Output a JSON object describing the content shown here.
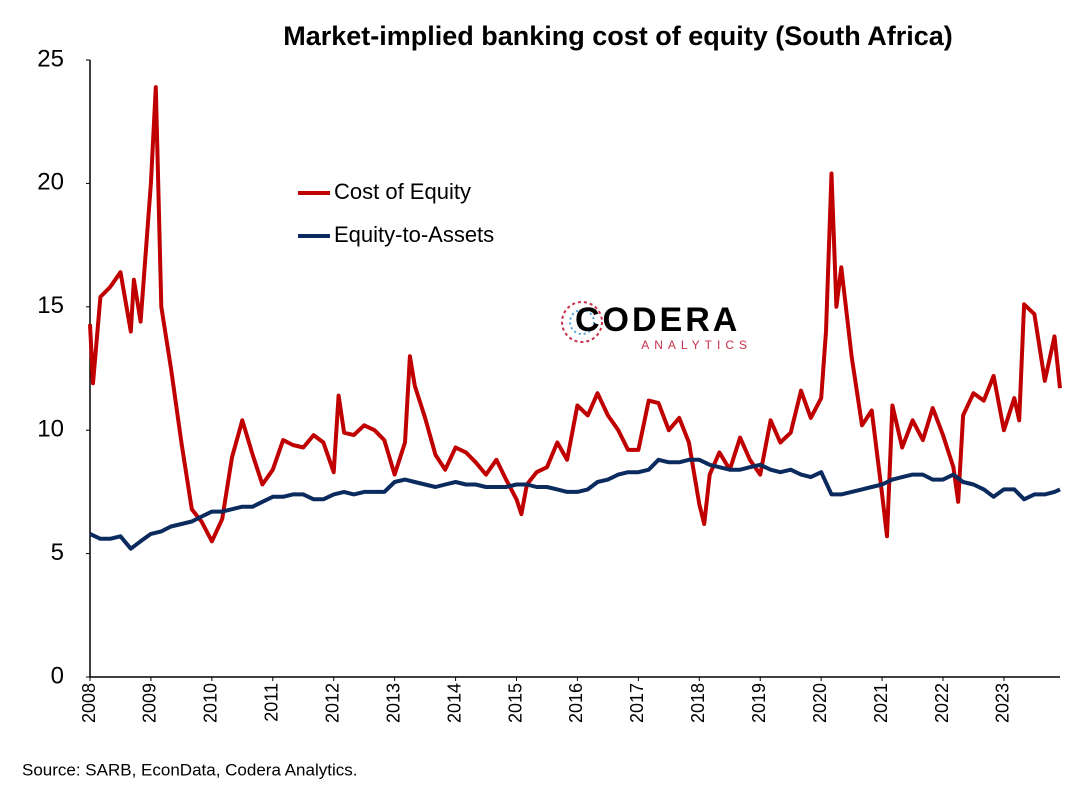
{
  "chart_data": {
    "type": "line",
    "title": "Market-implied banking cost of equity (South Africa)",
    "source": "Source: SARB, EconData, Codera Analytics.",
    "logo": {
      "name": "CODERA",
      "sub": "ANALYTICS"
    },
    "legend": "upper left",
    "xlim": [
      2008,
      2023.92
    ],
    "xticks": [
      2008,
      2009,
      2010,
      2011,
      2012,
      2013,
      2014,
      2015,
      2016,
      2017,
      2018,
      2019,
      2020,
      2021,
      2022,
      2023
    ],
    "ylim": [
      0,
      25
    ],
    "yticks": [
      0,
      5,
      10,
      15,
      20,
      25
    ],
    "grid": false,
    "series": [
      {
        "name": "Cost of Equity",
        "color": "#c00000",
        "x": [
          2008,
          2008.05,
          2008.17,
          2008.33,
          2008.5,
          2008.67,
          2008.72,
          2008.83,
          2009,
          2009.08,
          2009.17,
          2009.33,
          2009.5,
          2009.67,
          2009.83,
          2010,
          2010.17,
          2010.33,
          2010.5,
          2010.67,
          2010.83,
          2011,
          2011.17,
          2011.33,
          2011.5,
          2011.67,
          2011.83,
          2012,
          2012.08,
          2012.17,
          2012.33,
          2012.5,
          2012.67,
          2012.83,
          2013,
          2013.17,
          2013.25,
          2013.33,
          2013.5,
          2013.67,
          2013.83,
          2014,
          2014.17,
          2014.33,
          2014.5,
          2014.67,
          2014.83,
          2015,
          2015.08,
          2015.17,
          2015.33,
          2015.5,
          2015.67,
          2015.83,
          2016,
          2016.17,
          2016.33,
          2016.5,
          2016.67,
          2016.83,
          2017,
          2017.17,
          2017.33,
          2017.5,
          2017.67,
          2017.83,
          2018,
          2018.08,
          2018.17,
          2018.33,
          2018.5,
          2018.67,
          2018.83,
          2019,
          2019.17,
          2019.33,
          2019.5,
          2019.67,
          2019.83,
          2020,
          2020.08,
          2020.17,
          2020.25,
          2020.33,
          2020.5,
          2020.67,
          2020.83,
          2021,
          2021.08,
          2021.17,
          2021.33,
          2021.5,
          2021.67,
          2021.83,
          2022,
          2022.17,
          2022.25,
          2022.33,
          2022.5,
          2022.67,
          2022.83,
          2023,
          2023.17,
          2023.25,
          2023.33,
          2023.5,
          2023.67,
          2023.83,
          2023.92
        ],
        "values": [
          14.3,
          11.9,
          15.4,
          15.8,
          16.4,
          14.0,
          16.1,
          14.4,
          20.0,
          23.9,
          15.0,
          12.5,
          9.5,
          6.8,
          6.3,
          5.5,
          6.4,
          8.9,
          10.4,
          9.0,
          7.8,
          8.4,
          9.6,
          9.4,
          9.3,
          9.8,
          9.5,
          8.3,
          11.4,
          9.9,
          9.8,
          10.2,
          10.0,
          9.6,
          8.2,
          9.5,
          13.0,
          11.8,
          10.5,
          9.0,
          8.4,
          9.3,
          9.1,
          8.7,
          8.2,
          8.8,
          8.0,
          7.2,
          6.6,
          7.8,
          8.3,
          8.5,
          9.5,
          8.8,
          11.0,
          10.6,
          11.5,
          10.6,
          10.0,
          9.2,
          9.2,
          11.2,
          11.1,
          10.0,
          10.5,
          9.5,
          7.0,
          6.2,
          8.2,
          9.1,
          8.4,
          9.7,
          8.8,
          8.2,
          10.4,
          9.5,
          9.9,
          11.6,
          10.5,
          11.3,
          14.0,
          20.4,
          15.0,
          16.6,
          13.0,
          10.2,
          10.8,
          7.4,
          5.7,
          11.0,
          9.3,
          10.4,
          9.6,
          10.9,
          9.8,
          8.5,
          7.1,
          10.6,
          11.5,
          11.2,
          12.2,
          10.0,
          11.3,
          10.4,
          15.1,
          14.7,
          12.0,
          13.8,
          11.7
        ]
      },
      {
        "name": "Equity-to-Assets",
        "color": "#0b2a5e",
        "x": [
          2008,
          2008.17,
          2008.33,
          2008.5,
          2008.67,
          2008.83,
          2009,
          2009.17,
          2009.33,
          2009.5,
          2009.67,
          2009.83,
          2010,
          2010.17,
          2010.33,
          2010.5,
          2010.67,
          2010.83,
          2011,
          2011.17,
          2011.33,
          2011.5,
          2011.67,
          2011.83,
          2012,
          2012.17,
          2012.33,
          2012.5,
          2012.67,
          2012.83,
          2013,
          2013.17,
          2013.33,
          2013.5,
          2013.67,
          2013.83,
          2014,
          2014.17,
          2014.33,
          2014.5,
          2014.67,
          2014.83,
          2015,
          2015.17,
          2015.33,
          2015.5,
          2015.67,
          2015.83,
          2016,
          2016.17,
          2016.33,
          2016.5,
          2016.67,
          2016.83,
          2017,
          2017.17,
          2017.33,
          2017.5,
          2017.67,
          2017.83,
          2018,
          2018.17,
          2018.33,
          2018.5,
          2018.67,
          2018.83,
          2019,
          2019.17,
          2019.33,
          2019.5,
          2019.67,
          2019.83,
          2020,
          2020.17,
          2020.33,
          2020.5,
          2020.67,
          2020.83,
          2021,
          2021.17,
          2021.33,
          2021.5,
          2021.67,
          2021.83,
          2022,
          2022.17,
          2022.33,
          2022.5,
          2022.67,
          2022.83,
          2023,
          2023.17,
          2023.33,
          2023.5,
          2023.67,
          2023.83,
          2023.92
        ],
        "values": [
          5.8,
          5.6,
          5.6,
          5.7,
          5.2,
          5.5,
          5.8,
          5.9,
          6.1,
          6.2,
          6.3,
          6.5,
          6.7,
          6.7,
          6.8,
          6.9,
          6.9,
          7.1,
          7.3,
          7.3,
          7.4,
          7.4,
          7.2,
          7.2,
          7.4,
          7.5,
          7.4,
          7.5,
          7.5,
          7.5,
          7.9,
          8.0,
          7.9,
          7.8,
          7.7,
          7.8,
          7.9,
          7.8,
          7.8,
          7.7,
          7.7,
          7.7,
          7.8,
          7.8,
          7.7,
          7.7,
          7.6,
          7.5,
          7.5,
          7.6,
          7.9,
          8.0,
          8.2,
          8.3,
          8.3,
          8.4,
          8.8,
          8.7,
          8.7,
          8.8,
          8.8,
          8.6,
          8.5,
          8.4,
          8.4,
          8.5,
          8.6,
          8.4,
          8.3,
          8.4,
          8.2,
          8.1,
          8.3,
          7.4,
          7.4,
          7.5,
          7.6,
          7.7,
          7.8,
          8.0,
          8.1,
          8.2,
          8.2,
          8.0,
          8.0,
          8.2,
          7.9,
          7.8,
          7.6,
          7.3,
          7.6,
          7.6,
          7.2,
          7.4,
          7.4,
          7.5,
          7.6
        ]
      }
    ]
  }
}
